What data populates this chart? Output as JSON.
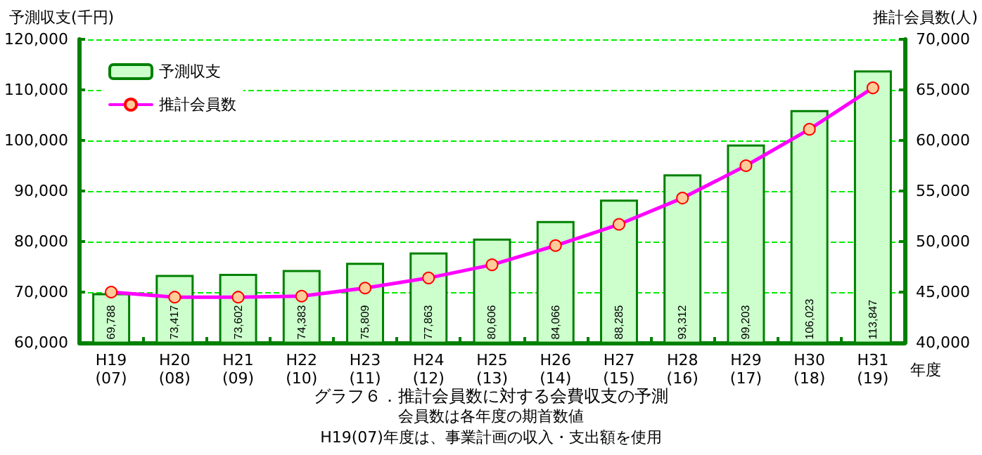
{
  "chart_data": {
    "type": "bar",
    "title": "グラフ６．推計会員数に対する会費収支の予測",
    "subtitle": "会員数は各年度の期首数値",
    "annotations": [
      "H19(07)年度は、事業計画の収入・支出額を使用"
    ],
    "xlabel": "年度",
    "ylabel": "予測収支(千円)",
    "y2label": "推計会員数(人)",
    "categories": [
      "H19\n(07)",
      "H20\n(08)",
      "H21\n(09)",
      "H22\n(10)",
      "H23\n(11)",
      "H24\n(12)",
      "H25\n(13)",
      "H26\n(14)",
      "H27\n(15)",
      "H28\n(16)",
      "H29\n(17)",
      "H30\n(18)",
      "H31\n(19)"
    ],
    "series": [
      {
        "name": "予測収支",
        "color": "#ccffcc",
        "values": [
          69788,
          73417,
          73602,
          74383,
          75809,
          77863,
          80606,
          84066,
          88285,
          93312,
          99203,
          106023,
          113847
        ],
        "value_labels": [
          "69,788",
          "73,417",
          "73,602",
          "74,383",
          "75,809",
          "77,863",
          "80,606",
          "84,066",
          "88,285",
          "93,312",
          "99,203",
          "106,023",
          "113,847"
        ]
      },
      {
        "name": "推計会員数",
        "type": "line",
        "axis": "y2",
        "color": "#ff00ff",
        "marker": "circle",
        "values": [
          45000,
          44500,
          44500,
          44600,
          45400,
          46400,
          47700,
          49600,
          51700,
          54300,
          57500,
          61100,
          65200
        ]
      }
    ],
    "ylim": [
      60000,
      120000
    ],
    "yticks": [
      {
        "value": 60000,
        "label": "60,000"
      },
      {
        "value": 70000,
        "label": "70,000"
      },
      {
        "value": 80000,
        "label": "80,000"
      },
      {
        "value": 90000,
        "label": "90,000"
      },
      {
        "value": 100000,
        "label": "100,000"
      },
      {
        "value": 110000,
        "label": "110,000"
      },
      {
        "value": 120000,
        "label": "120,000"
      }
    ],
    "y2lim": [
      40000,
      70000
    ],
    "y2ticks": [
      {
        "value": 40000,
        "label": "40,000"
      },
      {
        "value": 45000,
        "label": "45,000"
      },
      {
        "value": 50000,
        "label": "50,000"
      },
      {
        "value": 55000,
        "label": "55,000"
      },
      {
        "value": 60000,
        "label": "60,000"
      },
      {
        "value": 65000,
        "label": "65,000"
      },
      {
        "value": 70000,
        "label": "70,000"
      }
    ],
    "grid": "y",
    "legend": "top left"
  }
}
